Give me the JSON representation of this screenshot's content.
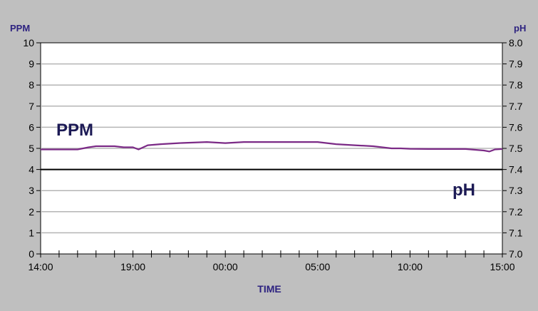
{
  "chart_data": {
    "type": "line",
    "x_label": "TIME",
    "y_left_label": "PPM",
    "y_right_label": "pH",
    "x_ticks": [
      "14:00",
      "19:00",
      "00:00",
      "05:00",
      "10:00",
      "15:00"
    ],
    "x_range_hours": [
      0,
      25
    ],
    "y_left_range": [
      0,
      10
    ],
    "y_left_ticks": [
      "0",
      "1",
      "2",
      "3",
      "4",
      "5",
      "6",
      "7",
      "8",
      "9",
      "10"
    ],
    "y_right_range": [
      7.0,
      8.0
    ],
    "y_right_ticks": [
      "7.0",
      "7.1",
      "7.2",
      "7.3",
      "7.4",
      "7.5",
      "7.6",
      "7.7",
      "7.8",
      "7.9",
      "8.0"
    ],
    "grid": true,
    "series": [
      {
        "name": "PPM",
        "axis": "left",
        "color": "#7b2a86",
        "x_hours": [
          0,
          1,
          2,
          2.6,
          3,
          4,
          4.5,
          5,
          5.3,
          5.8,
          6.5,
          7.5,
          9,
          10,
          11,
          12,
          13,
          14,
          15,
          15.5,
          16,
          17,
          18,
          18.5,
          19,
          19.5,
          20,
          21,
          21.5,
          22,
          23,
          24,
          24.3,
          24.6,
          25
        ],
        "values": [
          4.95,
          4.95,
          4.95,
          5.05,
          5.1,
          5.1,
          5.05,
          5.05,
          4.95,
          5.15,
          5.2,
          5.25,
          5.3,
          5.25,
          5.3,
          5.3,
          5.3,
          5.3,
          5.3,
          5.25,
          5.2,
          5.15,
          5.1,
          5.05,
          5.0,
          5.0,
          4.98,
          4.97,
          4.97,
          4.97,
          4.97,
          4.9,
          4.85,
          4.95,
          4.97
        ]
      },
      {
        "name": "pH",
        "axis": "right",
        "color": "#000000",
        "x_hours": [
          0,
          25
        ],
        "values": [
          7.4,
          7.4
        ]
      }
    ],
    "annotations": [
      {
        "text": "PPM",
        "series": "PPM"
      },
      {
        "text": "pH",
        "series": "pH"
      }
    ]
  }
}
